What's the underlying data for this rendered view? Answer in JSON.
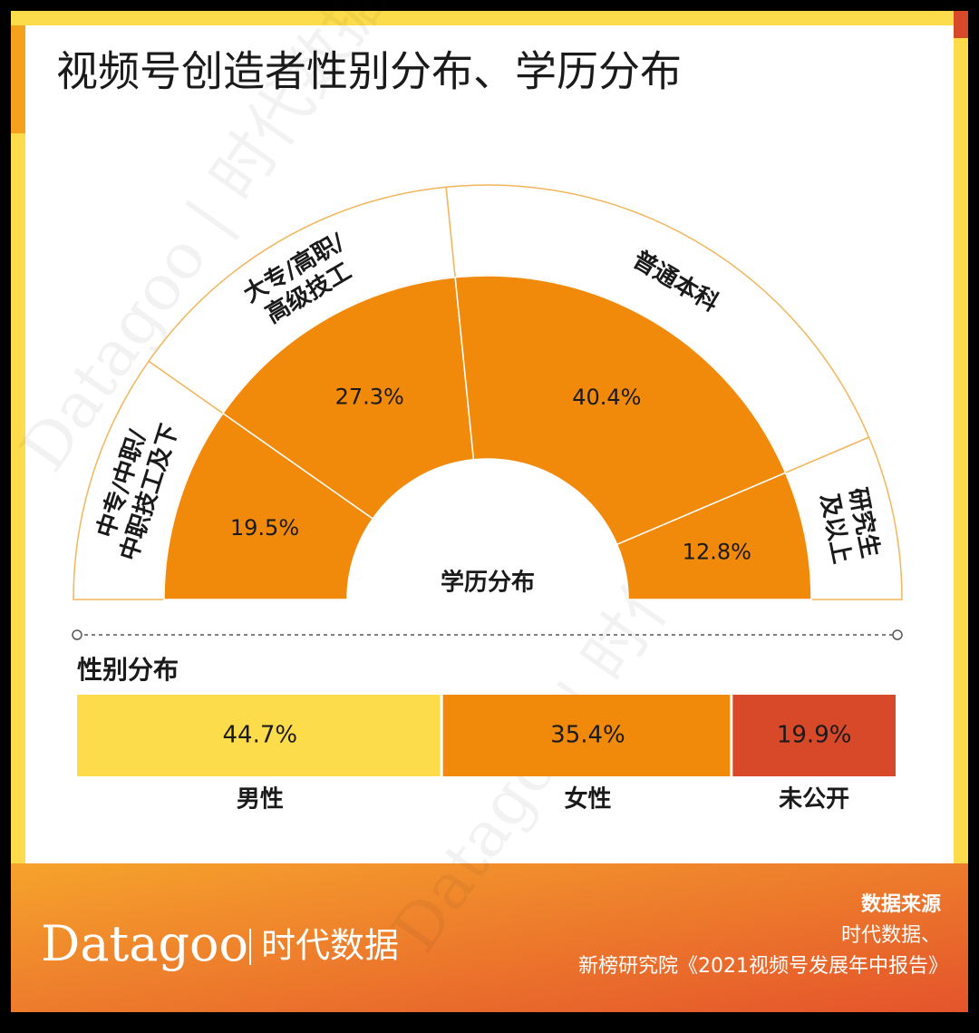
{
  "title": "视频号创造者性别分布、学历分布",
  "watermark": "Datagoo | 时代数据",
  "chart_data": [
    {
      "type": "semi-donut",
      "center_label": "学历分布",
      "categories": [
        [
          "中专/中职/",
          "中职技工及下"
        ],
        [
          "大专/高职/",
          "高级技工"
        ],
        [
          "普通本科"
        ],
        [
          "研究生",
          "及以上"
        ]
      ],
      "values": [
        19.5,
        27.3,
        40.4,
        12.8
      ],
      "value_labels": [
        "19.5%",
        "27.3%",
        "40.4%",
        "12.8%"
      ],
      "color": "#f18a0b"
    },
    {
      "type": "stacked-bar",
      "title": "性别分布",
      "categories": [
        "男性",
        "女性",
        "未公开"
      ],
      "values": [
        44.7,
        35.4,
        19.9
      ],
      "value_labels": [
        "44.7%",
        "35.4%",
        "19.9%"
      ],
      "colors": [
        "#fddc4b",
        "#f18a0b",
        "#d8492a"
      ]
    }
  ],
  "footer": {
    "brand": "Datagoo",
    "brand_cn": "时代数据",
    "source_title": "数据来源",
    "source_lines": [
      "时代数据、",
      "新榜研究院《2021视频号发展年中报告》"
    ]
  }
}
